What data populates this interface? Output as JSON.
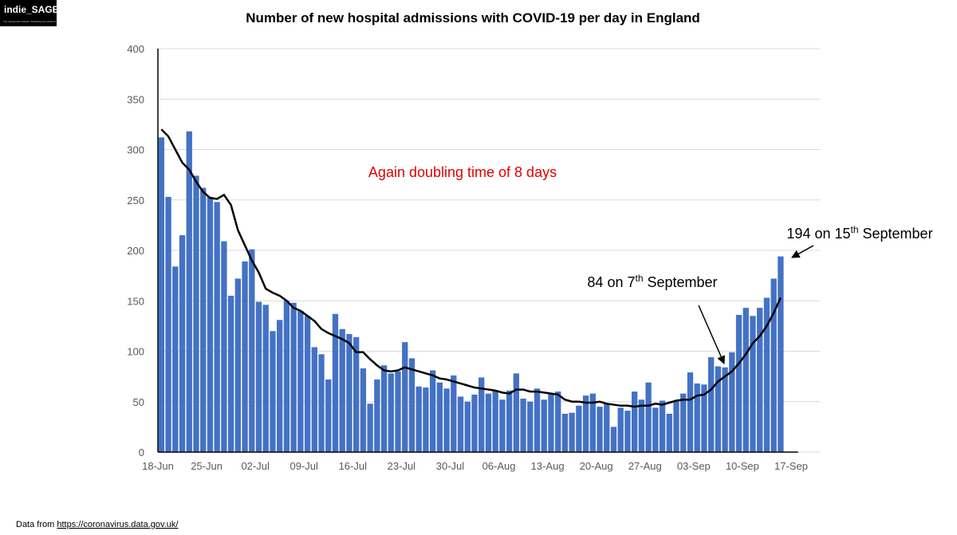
{
  "logo": {
    "name": "indie_SAGE",
    "tagline": "The Independent SAGE • Publishing the evidence"
  },
  "footer": {
    "prefix": "Data from ",
    "link": "https://coronavirus.data.gov.uk/"
  },
  "chart_data": {
    "type": "bar",
    "title": "Number of new hospital admissions with COVID-19 per day in England",
    "annotations": [
      {
        "parts": [
          "Again doubling time of 8 days"
        ],
        "color": "#e00000"
      },
      {
        "parts": [
          "84 on 7",
          "th",
          " September"
        ],
        "color": "#000000"
      },
      {
        "parts": [
          "194 on 15",
          "th",
          " September"
        ],
        "color": "#000000"
      }
    ],
    "categories": [
      "18-Jun",
      null,
      null,
      null,
      null,
      null,
      null,
      "25-Jun",
      null,
      null,
      null,
      null,
      null,
      null,
      "02-Jul",
      null,
      null,
      null,
      null,
      null,
      null,
      "09-Jul",
      null,
      null,
      null,
      null,
      null,
      null,
      "16-Jul",
      null,
      null,
      null,
      null,
      null,
      null,
      "23-Jul",
      null,
      null,
      null,
      null,
      null,
      null,
      "30-Jul",
      null,
      null,
      null,
      null,
      null,
      null,
      "06-Aug",
      null,
      null,
      null,
      null,
      null,
      null,
      "13-Aug",
      null,
      null,
      null,
      null,
      null,
      null,
      "20-Aug",
      null,
      null,
      null,
      null,
      null,
      null,
      "27-Aug",
      null,
      null,
      null,
      null,
      null,
      null,
      "03-Sep",
      null,
      null,
      null,
      null,
      null,
      null,
      "10-Sep",
      null,
      null,
      null,
      null,
      null,
      null,
      "17-Sep"
    ],
    "series": [
      {
        "type": "bar",
        "color": "#4472c4",
        "values": [
          312,
          253,
          184,
          215,
          318,
          274,
          262,
          253,
          248,
          209,
          155,
          172,
          189,
          201,
          149,
          146,
          120,
          131,
          150,
          148,
          140,
          135,
          104,
          97,
          72,
          137,
          122,
          117,
          114,
          83,
          48,
          72,
          86,
          78,
          80,
          109,
          93,
          65,
          64,
          81,
          69,
          63,
          76,
          55,
          50,
          57,
          74,
          58,
          61,
          52,
          61,
          78,
          53,
          50,
          63,
          52,
          58,
          60,
          38,
          39,
          46,
          56,
          58,
          45,
          48,
          25,
          44,
          41,
          60,
          52,
          69,
          44,
          51,
          38,
          51,
          58,
          79,
          68,
          67,
          94,
          85,
          84,
          99,
          136,
          143,
          135,
          143,
          153,
          172,
          194,
          null,
          null
        ]
      },
      {
        "type": "line",
        "color": "#000000",
        "values": [
          320,
          313,
          300,
          287,
          280,
          268,
          258,
          252,
          251,
          255,
          245,
          220,
          205,
          190,
          178,
          162,
          158,
          155,
          150,
          143,
          140,
          135,
          130,
          122,
          118,
          115,
          112,
          108,
          99,
          99,
          92,
          86,
          81,
          80,
          81,
          84,
          82,
          80,
          78,
          76,
          73,
          72,
          70,
          68,
          66,
          64,
          63,
          62,
          61,
          59,
          58,
          62,
          62,
          60,
          60,
          59,
          58,
          57,
          52,
          50,
          50,
          49,
          49,
          50,
          48,
          47,
          46,
          46,
          45,
          46,
          46,
          48,
          47,
          49,
          51,
          52,
          52,
          56,
          57,
          62,
          70,
          75,
          80,
          88,
          97,
          108,
          115,
          125,
          138,
          153,
          null,
          null
        ]
      }
    ],
    "ylim": [
      0,
      400
    ],
    "yticks": [
      0,
      50,
      100,
      150,
      200,
      250,
      300,
      350,
      400
    ],
    "grid": true
  }
}
